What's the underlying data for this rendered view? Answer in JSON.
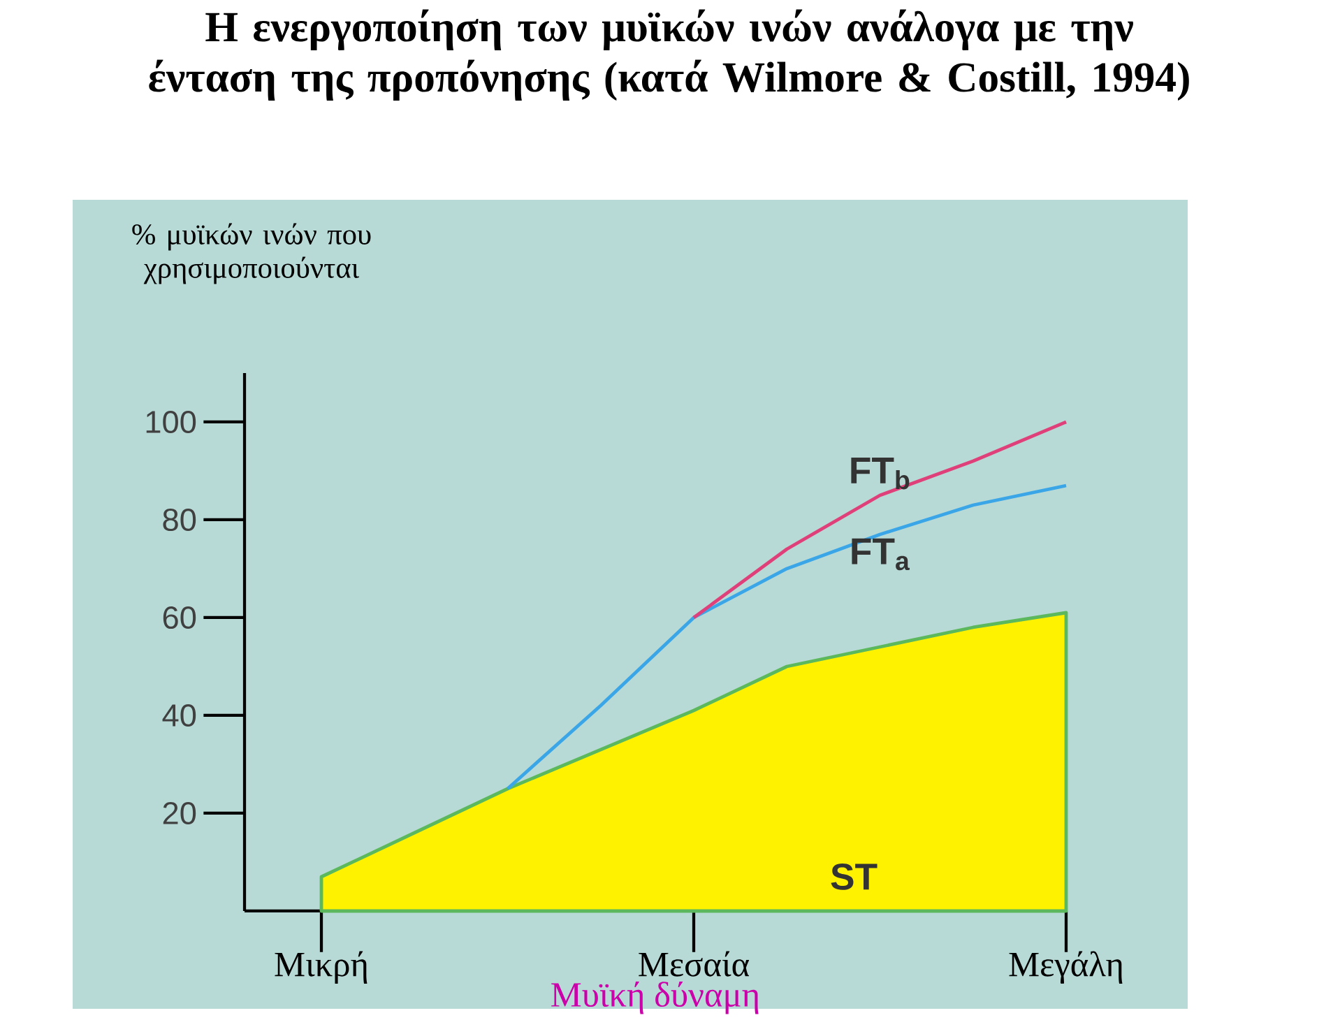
{
  "chart_data": {
    "type": "line",
    "title": "Η ενεργοποίηση των μυϊκών ινών ανάλογα με την ένταση της προπόνησης (κατά Wilmore & Costill, 1994)",
    "ylabel": "% μυϊκών ινών που χρησιμοποιούνται",
    "xlabel": "Μυϊκή δύναμη",
    "categories": [
      "Μικρή",
      null,
      null,
      null,
      "Μεσαία",
      null,
      null,
      null,
      "Μεγάλη"
    ],
    "ylim": [
      0,
      110
    ],
    "yticks": [
      20,
      40,
      60,
      80,
      100
    ],
    "legend": false,
    "marker": "none",
    "line_style": "solid",
    "series": [
      {
        "name": "ST",
        "type": "area",
        "color": "#5cb85c",
        "values": [
          7,
          16,
          25,
          33,
          41,
          50,
          54,
          58,
          61
        ]
      },
      {
        "name": "FT$_{a}$",
        "color": "#3aa6e8",
        "values": [
          null,
          null,
          25,
          42,
          60,
          70,
          77,
          83,
          87
        ]
      },
      {
        "name": "FT$_{b}$",
        "color": "#e0407a",
        "values": [
          null,
          null,
          null,
          null,
          60,
          74,
          85,
          92,
          100
        ]
      }
    ]
  }
}
